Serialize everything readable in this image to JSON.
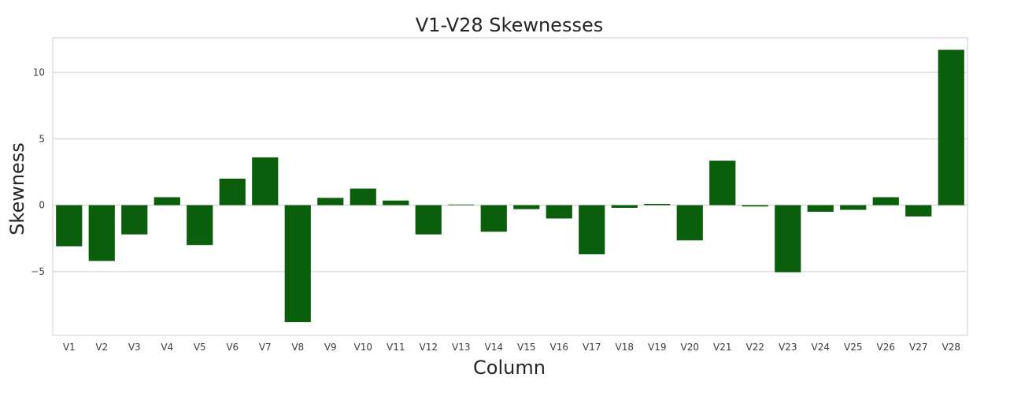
{
  "chart_data": {
    "type": "bar",
    "title": "V1-V28 Skewnesses",
    "xlabel": "Column",
    "ylabel": "Skewness",
    "categories": [
      "V1",
      "V2",
      "V3",
      "V4",
      "V5",
      "V6",
      "V7",
      "V8",
      "V9",
      "V10",
      "V11",
      "V12",
      "V13",
      "V14",
      "V15",
      "V16",
      "V17",
      "V18",
      "V19",
      "V20",
      "V21",
      "V22",
      "V23",
      "V24",
      "V25",
      "V26",
      "V27",
      "V28"
    ],
    "values": [
      -3.1,
      -4.2,
      -2.2,
      0.6,
      -3.0,
      2.0,
      3.6,
      -8.8,
      0.55,
      1.25,
      0.35,
      -2.2,
      0.05,
      -2.0,
      -0.3,
      -1.0,
      -3.7,
      -0.2,
      0.1,
      -2.65,
      3.35,
      -0.1,
      -5.05,
      -0.5,
      -0.35,
      0.6,
      -0.85,
      11.7
    ],
    "yticks": [
      -5,
      0,
      5,
      10
    ],
    "ylim": [
      -9.8,
      12.6
    ],
    "grid": true,
    "bar_color": "#0b5e0b"
  }
}
